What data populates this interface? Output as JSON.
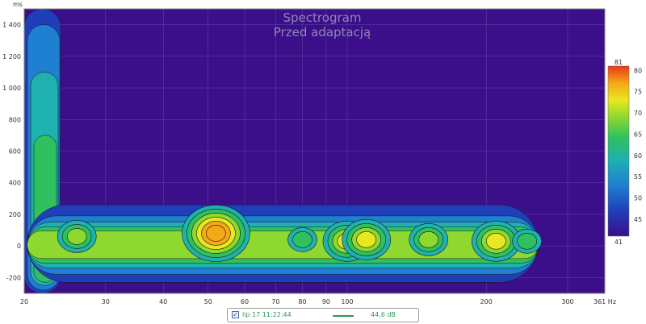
{
  "chart_data": {
    "type": "heatmap",
    "title": "Spectrogram",
    "subtitle": "Przed adaptacją",
    "ylabel": "ms",
    "xunit": "Hz",
    "x_scale": "log",
    "xlim": [
      20,
      361
    ],
    "ylim": [
      -300,
      1500
    ],
    "x_ticks": [
      "20",
      "30",
      "40",
      "50",
      "60",
      "70",
      "80",
      "90",
      "100",
      "200",
      "300",
      "361 Hz"
    ],
    "x_tick_values": [
      20,
      30,
      40,
      50,
      60,
      70,
      80,
      90,
      100,
      200,
      300,
      361
    ],
    "y_ticks": [
      "1 400",
      "1 200",
      "1 000",
      "800",
      "600",
      "400",
      "200",
      "0",
      "-200"
    ],
    "y_tick_values": [
      1400,
      1200,
      1000,
      800,
      600,
      400,
      200,
      0,
      -200
    ],
    "colorbar": {
      "min": 41,
      "max": 81,
      "min_label": "41",
      "max_label": "81",
      "ticks": [
        "80",
        "75",
        "70",
        "65",
        "60",
        "55",
        "50",
        "45"
      ],
      "tick_values": [
        80,
        75,
        70,
        65,
        60,
        55,
        50,
        45
      ]
    },
    "grid": true,
    "background_color": "#3c0f8a",
    "palette": [
      "#3c0f8a",
      "#1f3fb8",
      "#1f7fd0",
      "#1fb0b0",
      "#2fc060",
      "#8fd830",
      "#e8e820",
      "#f5a818",
      "#e83818"
    ],
    "peaks": [
      {
        "freq": 26,
        "time": 60,
        "level": 66
      },
      {
        "freq": 52,
        "time": 80,
        "level": 80
      },
      {
        "freq": 80,
        "time": 40,
        "level": 65
      },
      {
        "freq": 100,
        "time": 30,
        "level": 71
      },
      {
        "freq": 110,
        "time": 40,
        "level": 71
      },
      {
        "freq": 150,
        "time": 40,
        "level": 66
      },
      {
        "freq": 210,
        "time": 30,
        "level": 72
      },
      {
        "freq": 245,
        "time": 30,
        "level": 62
      }
    ]
  },
  "legend": {
    "checked": true,
    "label": "lip 17 11:22:44",
    "level": "44,6 dB",
    "color": "#2e9a5a"
  }
}
